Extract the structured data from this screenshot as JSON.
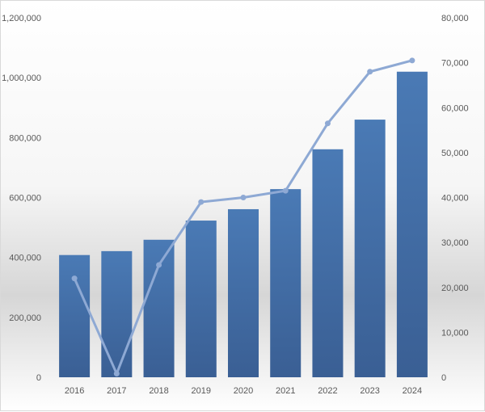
{
  "chart_data": {
    "type": "bar",
    "categories": [
      "2016",
      "2017",
      "2018",
      "2019",
      "2020",
      "2021",
      "2022",
      "2023",
      "2024"
    ],
    "series": [
      {
        "type": "bar",
        "axis": "left",
        "values": [
          408000,
          421000,
          459000,
          523000,
          561000,
          628000,
          761000,
          860000,
          1020000
        ]
      },
      {
        "type": "line",
        "axis": "right",
        "values": [
          22000,
          800,
          25000,
          39000,
          40000,
          41500,
          56500,
          68000,
          70500
        ]
      }
    ],
    "y_left": {
      "ylim": [
        0,
        1200000
      ],
      "ticks": [
        "0",
        "200,000",
        "400,000",
        "600,000",
        "800,000",
        "1,000,000",
        "1,200,000"
      ]
    },
    "y_right": {
      "ylim": [
        0,
        80000
      ],
      "ticks": [
        "0",
        "10,000",
        "20,000",
        "30,000",
        "40,000",
        "50,000",
        "60,000",
        "70,000",
        "80,000"
      ]
    },
    "grid": false,
    "legend": "none",
    "colors": {
      "bar_top": "#4a7ab5",
      "bar_bottom": "#3a5f94",
      "line": "#8ea9d4",
      "text": "#595959"
    }
  }
}
